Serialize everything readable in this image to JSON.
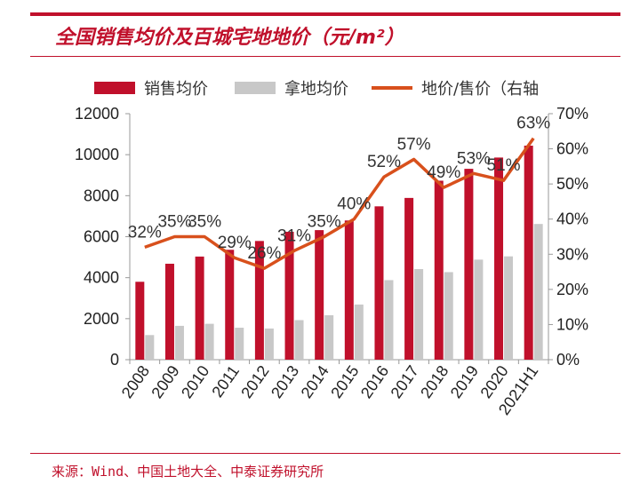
{
  "title": "全国销售均价及百城宅地地价（元/m²）",
  "source": "来源：Wind、中国土地大全、中泰证券研究所",
  "colors": {
    "accent": "#c0102b",
    "sale_bar": "#c0102b",
    "land_bar": "#c8c8c8",
    "ratio_line": "#d8501c"
  },
  "chart_data": {
    "type": "bar",
    "categories": [
      "2008",
      "2009",
      "2010",
      "2011",
      "2012",
      "2013",
      "2014",
      "2015",
      "2016",
      "2017",
      "2018",
      "2019",
      "2020",
      "2021H1"
    ],
    "series": [
      {
        "name": "销售均价",
        "type": "bar",
        "axis": "left",
        "values": [
          3800,
          4680,
          5030,
          5360,
          5790,
          6240,
          6320,
          6790,
          7480,
          7890,
          8730,
          9310,
          9860,
          10440
        ]
      },
      {
        "name": "拿地均价",
        "type": "bar",
        "axis": "left",
        "values": [
          1200,
          1650,
          1750,
          1560,
          1520,
          1930,
          2170,
          2690,
          3880,
          4420,
          4270,
          4880,
          5040,
          6620
        ]
      },
      {
        "name": "地价/售价（右轴",
        "type": "line",
        "axis": "right",
        "values": [
          32,
          35,
          35,
          29,
          26,
          31,
          35,
          40,
          52,
          57,
          49,
          53,
          51,
          63
        ],
        "labels": [
          "32%",
          "35%",
          "35%",
          "29%",
          "26%",
          "31%",
          "35%",
          "40%",
          "52%",
          "57%",
          "49%",
          "53%",
          "51%",
          "63%"
        ]
      }
    ],
    "ylim_left": [
      0,
      12000
    ],
    "yticks_left": [
      "0",
      "2000",
      "4000",
      "6000",
      "8000",
      "10000",
      "12000"
    ],
    "ylim_right": [
      0,
      70
    ],
    "yticks_right": [
      "0%",
      "10%",
      "20%",
      "30%",
      "40%",
      "50%",
      "60%",
      "70%"
    ],
    "legend_position": "top",
    "grid": false
  }
}
